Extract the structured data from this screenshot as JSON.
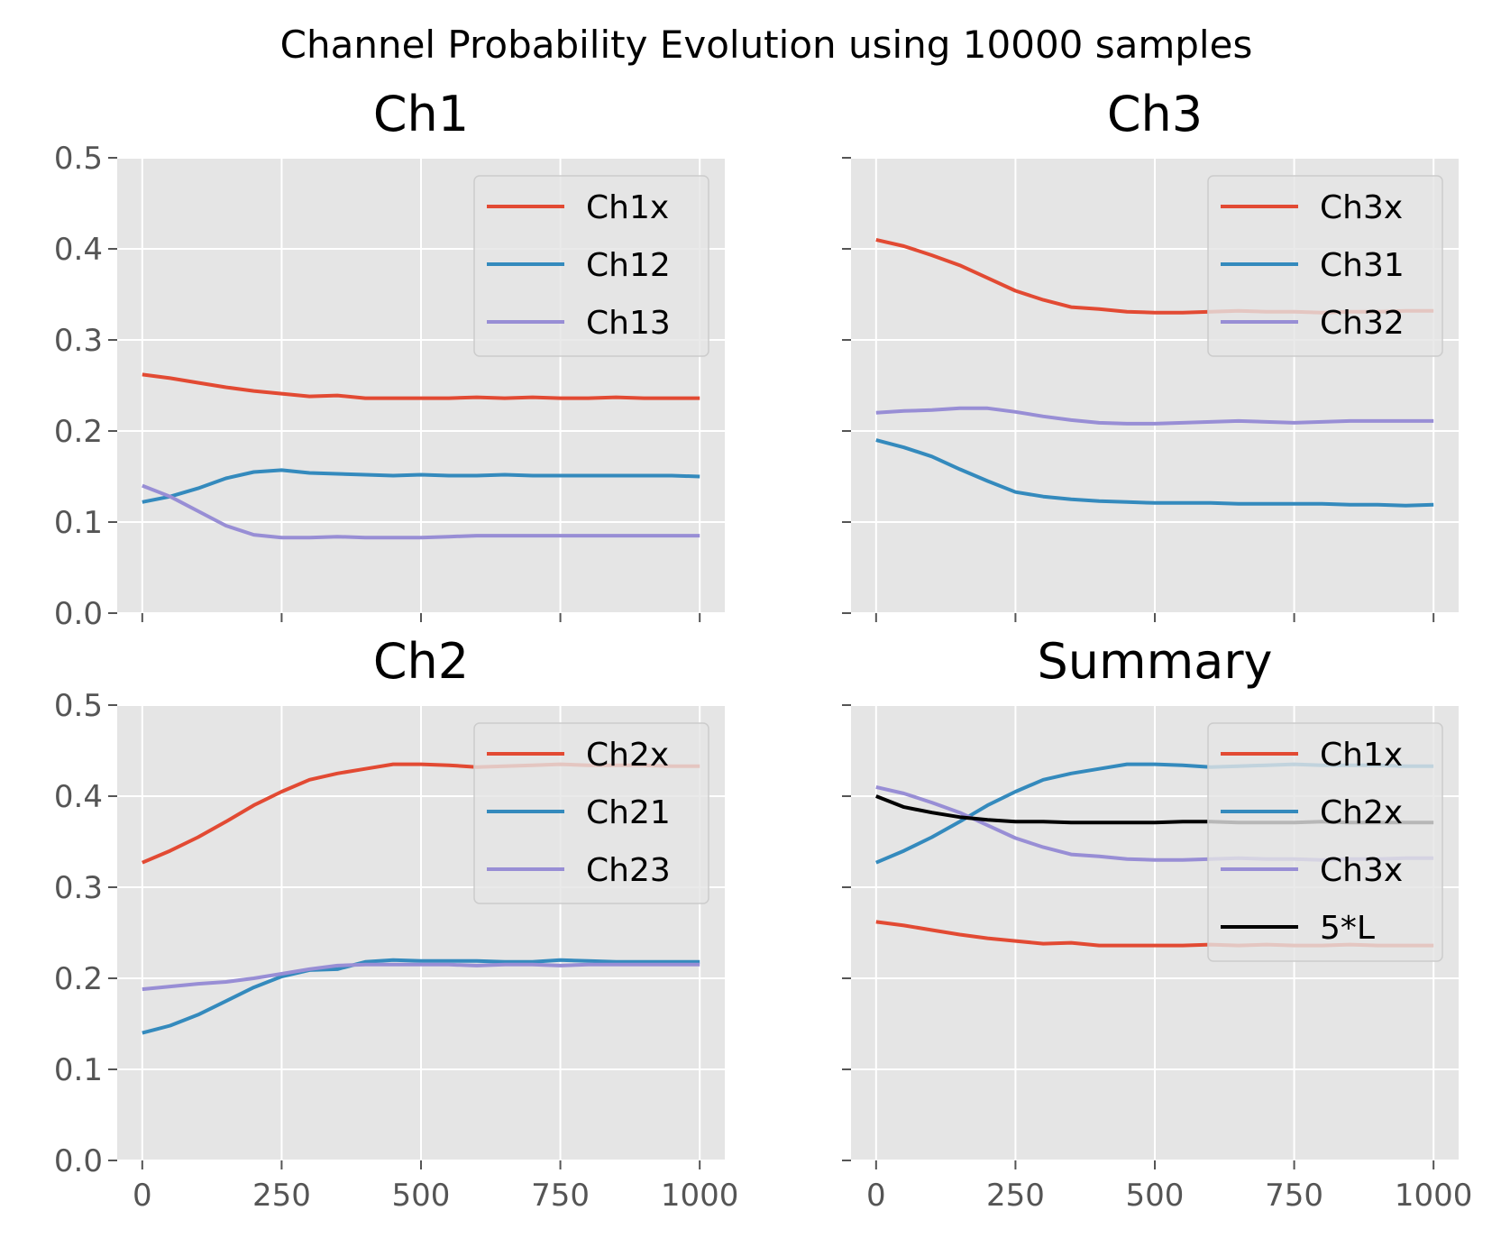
{
  "chart_data": {
    "type": "line",
    "suptitle": "Channel Probability Evolution using 10000 samples",
    "style": {
      "axes_bg": "#e5e5e5",
      "grid": "#ffffff",
      "tick_color": "#555555"
    },
    "panels": [
      {
        "title": "Ch1",
        "ylim": [
          0,
          0.5
        ],
        "xlim": [
          -45,
          1045
        ],
        "yticks": [
          "0.0",
          "0.1",
          "0.2",
          "0.3",
          "0.4",
          "0.5"
        ],
        "xticks": [
          "0",
          "250",
          "500",
          "750",
          "1000"
        ],
        "show_yticklabels": true,
        "show_xticklabels": false,
        "grid": true,
        "legend": "top-right",
        "x": [
          0,
          50,
          100,
          150,
          200,
          250,
          300,
          350,
          400,
          450,
          500,
          550,
          600,
          650,
          700,
          750,
          800,
          850,
          900,
          950,
          1000
        ],
        "series": [
          {
            "name": "Ch1x",
            "color": "#e24a33",
            "values": [
              0.262,
              0.258,
              0.253,
              0.248,
              0.244,
              0.241,
              0.238,
              0.239,
              0.236,
              0.236,
              0.236,
              0.236,
              0.237,
              0.236,
              0.237,
              0.236,
              0.236,
              0.237,
              0.236,
              0.236,
              0.236
            ]
          },
          {
            "name": "Ch12",
            "color": "#348abd",
            "values": [
              0.122,
              0.128,
              0.137,
              0.148,
              0.155,
              0.157,
              0.154,
              0.153,
              0.152,
              0.151,
              0.152,
              0.151,
              0.151,
              0.152,
              0.151,
              0.151,
              0.151,
              0.151,
              0.151,
              0.151,
              0.15
            ]
          },
          {
            "name": "Ch13",
            "color": "#988ed5",
            "values": [
              0.14,
              0.128,
              0.112,
              0.096,
              0.086,
              0.083,
              0.083,
              0.084,
              0.083,
              0.083,
              0.083,
              0.084,
              0.085,
              0.085,
              0.085,
              0.085,
              0.085,
              0.085,
              0.085,
              0.085,
              0.085
            ]
          }
        ]
      },
      {
        "title": "Ch3",
        "ylim": [
          0,
          0.5
        ],
        "xlim": [
          -45,
          1045
        ],
        "yticks": [
          "0.0",
          "0.1",
          "0.2",
          "0.3",
          "0.4",
          "0.5"
        ],
        "xticks": [
          "0",
          "250",
          "500",
          "750",
          "1000"
        ],
        "show_yticklabels": false,
        "show_xticklabels": false,
        "grid": true,
        "legend": "top-right",
        "x": [
          0,
          50,
          100,
          150,
          200,
          250,
          300,
          350,
          400,
          450,
          500,
          550,
          600,
          650,
          700,
          750,
          800,
          850,
          900,
          950,
          1000
        ],
        "series": [
          {
            "name": "Ch3x",
            "color": "#e24a33",
            "values": [
              0.41,
              0.403,
              0.393,
              0.382,
              0.368,
              0.354,
              0.344,
              0.336,
              0.334,
              0.331,
              0.33,
              0.33,
              0.331,
              0.332,
              0.331,
              0.331,
              0.33,
              0.331,
              0.331,
              0.332,
              0.332
            ]
          },
          {
            "name": "Ch31",
            "color": "#348abd",
            "values": [
              0.19,
              0.182,
              0.172,
              0.158,
              0.145,
              0.133,
              0.128,
              0.125,
              0.123,
              0.122,
              0.121,
              0.121,
              0.121,
              0.12,
              0.12,
              0.12,
              0.12,
              0.119,
              0.119,
              0.118,
              0.119
            ]
          },
          {
            "name": "Ch32",
            "color": "#988ed5",
            "values": [
              0.22,
              0.222,
              0.223,
              0.225,
              0.225,
              0.221,
              0.216,
              0.212,
              0.209,
              0.208,
              0.208,
              0.209,
              0.21,
              0.211,
              0.21,
              0.209,
              0.21,
              0.211,
              0.211,
              0.211,
              0.211
            ]
          }
        ]
      },
      {
        "title": "Ch2",
        "ylim": [
          0,
          0.5
        ],
        "xlim": [
          -45,
          1045
        ],
        "yticks": [
          "0.0",
          "0.1",
          "0.2",
          "0.3",
          "0.4",
          "0.5"
        ],
        "xticks": [
          "0",
          "250",
          "500",
          "750",
          "1000"
        ],
        "show_yticklabels": true,
        "show_xticklabels": true,
        "grid": true,
        "legend": "top-right",
        "x": [
          0,
          50,
          100,
          150,
          200,
          250,
          300,
          350,
          400,
          450,
          500,
          550,
          600,
          650,
          700,
          750,
          800,
          850,
          900,
          950,
          1000
        ],
        "series": [
          {
            "name": "Ch2x",
            "color": "#e24a33",
            "values": [
              0.327,
              0.34,
              0.355,
              0.372,
              0.39,
              0.405,
              0.418,
              0.425,
              0.43,
              0.435,
              0.435,
              0.434,
              0.432,
              0.433,
              0.434,
              0.435,
              0.434,
              0.434,
              0.434,
              0.433,
              0.433
            ]
          },
          {
            "name": "Ch21",
            "color": "#348abd",
            "values": [
              0.14,
              0.148,
              0.16,
              0.175,
              0.19,
              0.202,
              0.209,
              0.21,
              0.218,
              0.22,
              0.219,
              0.219,
              0.219,
              0.218,
              0.218,
              0.22,
              0.219,
              0.218,
              0.218,
              0.218,
              0.218
            ]
          },
          {
            "name": "Ch23",
            "color": "#988ed5",
            "values": [
              0.188,
              0.191,
              0.194,
              0.196,
              0.2,
              0.205,
              0.21,
              0.214,
              0.215,
              0.215,
              0.215,
              0.215,
              0.214,
              0.215,
              0.215,
              0.214,
              0.215,
              0.215,
              0.215,
              0.215,
              0.215
            ]
          }
        ]
      },
      {
        "title": "Summary",
        "ylim": [
          0,
          0.5
        ],
        "xlim": [
          -45,
          1045
        ],
        "yticks": [
          "0.0",
          "0.1",
          "0.2",
          "0.3",
          "0.4",
          "0.5"
        ],
        "xticks": [
          "0",
          "250",
          "500",
          "750",
          "1000"
        ],
        "show_yticklabels": false,
        "show_xticklabels": true,
        "grid": true,
        "legend": "top-right",
        "x": [
          0,
          50,
          100,
          150,
          200,
          250,
          300,
          350,
          400,
          450,
          500,
          550,
          600,
          650,
          700,
          750,
          800,
          850,
          900,
          950,
          1000
        ],
        "series": [
          {
            "name": "Ch1x",
            "color": "#e24a33",
            "values": [
              0.262,
              0.258,
              0.253,
              0.248,
              0.244,
              0.241,
              0.238,
              0.239,
              0.236,
              0.236,
              0.236,
              0.236,
              0.237,
              0.236,
              0.237,
              0.236,
              0.236,
              0.237,
              0.236,
              0.236,
              0.236
            ]
          },
          {
            "name": "Ch2x",
            "color": "#348abd",
            "values": [
              0.327,
              0.34,
              0.355,
              0.372,
              0.39,
              0.405,
              0.418,
              0.425,
              0.43,
              0.435,
              0.435,
              0.434,
              0.432,
              0.433,
              0.434,
              0.435,
              0.434,
              0.434,
              0.434,
              0.433,
              0.433
            ]
          },
          {
            "name": "Ch3x",
            "color": "#e24a33",
            "values": [
              0.41,
              0.403,
              0.393,
              0.382,
              0.368,
              0.354,
              0.344,
              0.336,
              0.334,
              0.331,
              0.33,
              0.33,
              0.331,
              0.332,
              0.331,
              0.331,
              0.33,
              0.331,
              0.331,
              0.332,
              0.332
            ]
          },
          {
            "name": "5*L",
            "color": "#000000",
            "values": [
              0.4,
              0.388,
              0.382,
              0.377,
              0.374,
              0.372,
              0.372,
              0.371,
              0.371,
              0.371,
              0.371,
              0.372,
              0.372,
              0.371,
              0.371,
              0.371,
              0.372,
              0.371,
              0.371,
              0.371,
              0.371
            ]
          }
        ]
      }
    ]
  }
}
